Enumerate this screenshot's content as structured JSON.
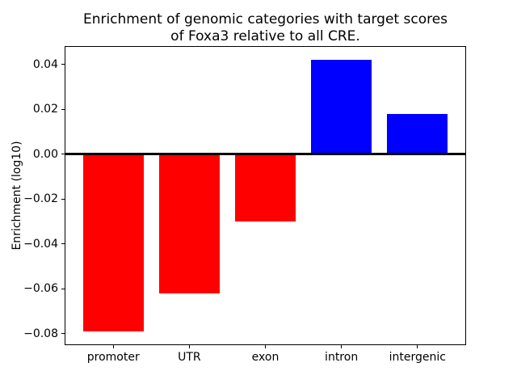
{
  "figure": {
    "title_line1": "Enrichment of genomic categories with target scores",
    "title_line2": "of Foxa3 relative to all CRE.",
    "ylabel": "Enrichment (log10)"
  },
  "chart_data": {
    "type": "bar",
    "title": "Enrichment of genomic categories with target scores of Foxa3 relative to all CRE.",
    "xlabel": "",
    "ylabel": "Enrichment (log10)",
    "categories": [
      "promoter",
      "UTR",
      "exon",
      "intron",
      "intergenic"
    ],
    "values": [
      -0.079,
      -0.062,
      -0.03,
      0.042,
      0.018
    ],
    "bar_colors": [
      "#ff0000",
      "#ff0000",
      "#ff0000",
      "#0000ff",
      "#0000ff"
    ],
    "negative_color": "#ff0000",
    "positive_color": "#0000ff",
    "ytick_values": [
      0.04,
      0.02,
      0.0,
      -0.02,
      -0.04,
      -0.06,
      -0.08
    ],
    "ytick_labels": [
      "0.04",
      "0.02",
      "0.00",
      "−0.02",
      "−0.04",
      "−0.06",
      "−0.08"
    ],
    "ylim": [
      -0.0851,
      0.0481
    ],
    "xlim": [
      -0.64,
      4.64
    ],
    "bar_width": 0.8,
    "grid": false,
    "legend": null,
    "zero_line": true,
    "background_color": "#ffffff"
  }
}
